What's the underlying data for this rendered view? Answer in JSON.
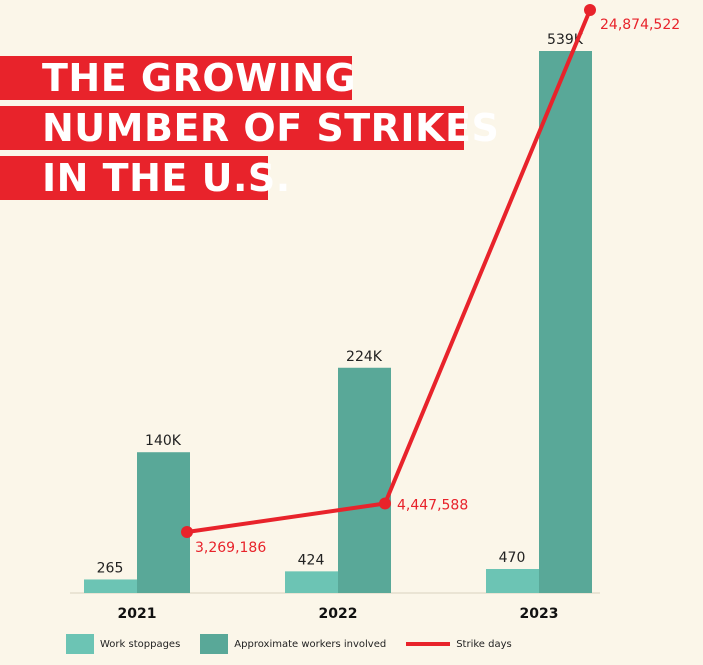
{
  "title": {
    "lines": [
      "THE GROWING",
      "NUMBER OF STRIKES",
      "IN THE U.S."
    ]
  },
  "colors": {
    "background": "#fbf6e9",
    "title_band": "#e8232b",
    "work_stoppages": "#6cc4b4",
    "workers_involved": "#59a898",
    "strike_days": "#e8232b"
  },
  "legend": {
    "work_stoppages": "Work stoppages",
    "workers_involved": "Approximate workers involved",
    "strike_days": "Strike days"
  },
  "chart_data": {
    "type": "bar",
    "categories": [
      "2021",
      "2022",
      "2023"
    ],
    "series": [
      {
        "name": "Work stoppages",
        "values": [
          265,
          424,
          470
        ],
        "labels": [
          "265",
          "424",
          "470"
        ]
      },
      {
        "name": "Approximate workers involved",
        "values": [
          140000,
          224000,
          539000
        ],
        "labels": [
          "140K",
          "224K",
          "539K"
        ]
      },
      {
        "name": "Strike days",
        "type": "line",
        "values": [
          3269186,
          4447588,
          24874522
        ],
        "labels": [
          "3,269,186",
          "4,447,588",
          "24,874,522"
        ]
      }
    ],
    "grid": false,
    "legend_position": "bottom"
  }
}
